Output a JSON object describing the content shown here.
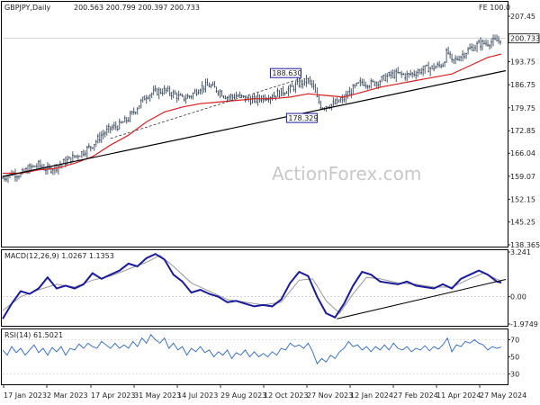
{
  "header": {
    "symbol": "GBPJPY,Daily",
    "ohlc": "200.563 200.799 200.397 200.733",
    "fe_label": "FE 100.0"
  },
  "watermark": "ActionForex.com",
  "colors": {
    "candle": "#3a4a5c",
    "ma": "#d62020",
    "trend": "#000000",
    "macd_line": "#1a1a9a",
    "macd_signal": "#999999",
    "rsi_line": "#2b66c4",
    "callout_box": "#1a1a9a",
    "grid": "#d0d0d0"
  },
  "chart_data": [
    {
      "type": "candlestick",
      "pane": "price",
      "y_ticks": [
        207.45,
        200.733,
        193.75,
        186.75,
        179.75,
        172.85,
        166.04,
        159.07,
        152.15,
        145.25,
        138.365
      ],
      "ylim": [
        138.365,
        207.45
      ],
      "last_price": 200.733,
      "x_tick_labels": [
        "17 Jan 2023",
        "2 Mar 2023",
        "17 Apr 2023",
        "31 May 2023",
        "14 Jul 2023",
        "29 Aug 2023",
        "12 Oct 2023",
        "27 Nov 2023",
        "12 Jan 2024",
        "27 Feb 2024",
        "11 Apr 2024",
        "27 May 2024"
      ],
      "close_points": [
        [
          0,
          158.5
        ],
        [
          10,
          160.0
        ],
        [
          20,
          159.5
        ],
        [
          30,
          161.5
        ],
        [
          40,
          162.5
        ],
        [
          50,
          161.0
        ],
        [
          60,
          162.0
        ],
        [
          70,
          163.5
        ],
        [
          80,
          165.0
        ],
        [
          90,
          166.5
        ],
        [
          100,
          168.5
        ],
        [
          110,
          171.5
        ],
        [
          120,
          173.5
        ],
        [
          130,
          174.5
        ],
        [
          140,
          176.5
        ],
        [
          150,
          180.0
        ],
        [
          160,
          183.5
        ],
        [
          170,
          184.5
        ],
        [
          180,
          185.0
        ],
        [
          190,
          184.0
        ],
        [
          200,
          182.5
        ],
        [
          210,
          183.5
        ],
        [
          220,
          186.0
        ],
        [
          230,
          186.5
        ],
        [
          240,
          185.0
        ],
        [
          250,
          183.0
        ],
        [
          260,
          183.5
        ],
        [
          270,
          182.5
        ],
        [
          280,
          182.0
        ],
        [
          290,
          183.0
        ],
        [
          300,
          183.5
        ],
        [
          310,
          184.5
        ],
        [
          320,
          185.5
        ],
        [
          330,
          187.0
        ],
        [
          340,
          188.0
        ],
        [
          345,
          186.5
        ],
        [
          350,
          182.5
        ],
        [
          355,
          180.0
        ],
        [
          360,
          180.5
        ],
        [
          370,
          181.0
        ],
        [
          380,
          182.5
        ],
        [
          390,
          185.5
        ],
        [
          400,
          187.5
        ],
        [
          410,
          187.0
        ],
        [
          420,
          188.0
        ],
        [
          430,
          189.5
        ],
        [
          440,
          190.0
        ],
        [
          450,
          189.5
        ],
        [
          460,
          190.5
        ],
        [
          470,
          191.5
        ],
        [
          480,
          192.0
        ],
        [
          490,
          193.0
        ],
        [
          495,
          197.0
        ],
        [
          500,
          193.5
        ],
        [
          510,
          195.5
        ],
        [
          520,
          197.5
        ],
        [
          530,
          199.0
        ],
        [
          540,
          199.5
        ],
        [
          550,
          200.0
        ],
        [
          555,
          200.7
        ]
      ],
      "ma_points": [
        [
          0,
          160.0
        ],
        [
          20,
          160.0
        ],
        [
          40,
          161.0
        ],
        [
          60,
          161.5
        ],
        [
          80,
          163.0
        ],
        [
          100,
          165.0
        ],
        [
          120,
          168.5
        ],
        [
          140,
          171.5
        ],
        [
          160,
          175.5
        ],
        [
          180,
          178.5
        ],
        [
          200,
          180.0
        ],
        [
          220,
          181.0
        ],
        [
          240,
          181.5
        ],
        [
          260,
          182.0
        ],
        [
          280,
          182.5
        ],
        [
          300,
          182.5
        ],
        [
          320,
          183.0
        ],
        [
          340,
          184.0
        ],
        [
          360,
          183.5
        ],
        [
          380,
          183.0
        ],
        [
          400,
          184.5
        ],
        [
          420,
          186.0
        ],
        [
          440,
          187.0
        ],
        [
          460,
          188.0
        ],
        [
          480,
          189.0
        ],
        [
          500,
          190.0
        ],
        [
          520,
          192.5
        ],
        [
          540,
          195.0
        ],
        [
          555,
          196.0
        ]
      ],
      "trendline": [
        [
          0,
          159.0
        ],
        [
          560,
          191.0
        ]
      ],
      "dashed_line": [
        [
          120,
          170.5
        ],
        [
          332,
          188.6
        ]
      ],
      "annotations": [
        {
          "text": "188.630",
          "x": 332,
          "y": 188.63
        },
        {
          "text": "178.329",
          "x": 350,
          "y": 178.33
        }
      ]
    },
    {
      "type": "line",
      "pane": "macd",
      "label": "MACD(12,26,9) 1.0267 1.1353",
      "y_ticks": [
        3.241,
        0.0,
        -1.9749
      ],
      "ylim": [
        -1.9749,
        3.241
      ],
      "macd_points": [
        [
          0,
          -1.6
        ],
        [
          10,
          -0.5
        ],
        [
          20,
          0.4
        ],
        [
          30,
          0.2
        ],
        [
          40,
          0.6
        ],
        [
          50,
          1.4
        ],
        [
          60,
          0.6
        ],
        [
          70,
          0.8
        ],
        [
          80,
          0.6
        ],
        [
          90,
          0.9
        ],
        [
          100,
          1.7
        ],
        [
          110,
          1.3
        ],
        [
          120,
          1.6
        ],
        [
          130,
          1.9
        ],
        [
          140,
          2.4
        ],
        [
          150,
          2.2
        ],
        [
          160,
          2.8
        ],
        [
          170,
          3.1
        ],
        [
          180,
          2.7
        ],
        [
          190,
          1.6
        ],
        [
          200,
          1.1
        ],
        [
          210,
          0.3
        ],
        [
          220,
          0.5
        ],
        [
          230,
          0.2
        ],
        [
          240,
          0.0
        ],
        [
          250,
          -0.4
        ],
        [
          260,
          -0.3
        ],
        [
          270,
          -0.5
        ],
        [
          280,
          -0.7
        ],
        [
          290,
          -0.6
        ],
        [
          300,
          -0.7
        ],
        [
          310,
          -0.2
        ],
        [
          320,
          1.0
        ],
        [
          330,
          1.8
        ],
        [
          340,
          1.5
        ],
        [
          350,
          0.0
        ],
        [
          360,
          -1.2
        ],
        [
          370,
          -1.5
        ],
        [
          380,
          -0.5
        ],
        [
          390,
          0.8
        ],
        [
          400,
          1.8
        ],
        [
          410,
          1.6
        ],
        [
          420,
          1.1
        ],
        [
          430,
          1.0
        ],
        [
          440,
          0.9
        ],
        [
          450,
          1.1
        ],
        [
          460,
          0.8
        ],
        [
          470,
          0.7
        ],
        [
          480,
          0.6
        ],
        [
          490,
          0.9
        ],
        [
          500,
          0.6
        ],
        [
          510,
          1.3
        ],
        [
          520,
          1.6
        ],
        [
          530,
          1.9
        ],
        [
          540,
          1.6
        ],
        [
          550,
          1.1
        ],
        [
          555,
          1.0267
        ]
      ],
      "signal_points": [
        [
          0,
          -1.0
        ],
        [
          20,
          0.0
        ],
        [
          40,
          0.5
        ],
        [
          60,
          0.9
        ],
        [
          80,
          0.7
        ],
        [
          100,
          1.2
        ],
        [
          120,
          1.5
        ],
        [
          140,
          2.0
        ],
        [
          160,
          2.5
        ],
        [
          175,
          3.0
        ],
        [
          190,
          2.2
        ],
        [
          210,
          1.0
        ],
        [
          230,
          0.4
        ],
        [
          250,
          -0.2
        ],
        [
          270,
          -0.4
        ],
        [
          290,
          -0.6
        ],
        [
          310,
          -0.4
        ],
        [
          330,
          1.2
        ],
        [
          345,
          1.3
        ],
        [
          360,
          -0.3
        ],
        [
          375,
          -1.2
        ],
        [
          390,
          0.2
        ],
        [
          405,
          1.4
        ],
        [
          420,
          1.3
        ],
        [
          440,
          1.0
        ],
        [
          460,
          0.9
        ],
        [
          480,
          0.7
        ],
        [
          500,
          0.7
        ],
        [
          520,
          1.3
        ],
        [
          535,
          1.7
        ],
        [
          555,
          1.1353
        ]
      ],
      "trendline": [
        [
          372,
          -1.6
        ],
        [
          560,
          1.25
        ]
      ]
    },
    {
      "type": "line",
      "pane": "rsi",
      "label": "RSI(14) 61.5021",
      "y_ticks": [
        70,
        50,
        30
      ],
      "ylim": [
        20,
        80
      ],
      "rsi_points": [
        [
          0,
          58
        ],
        [
          5,
          52
        ],
        [
          10,
          62
        ],
        [
          15,
          55
        ],
        [
          20,
          60
        ],
        [
          25,
          52
        ],
        [
          30,
          58
        ],
        [
          35,
          64
        ],
        [
          40,
          55
        ],
        [
          45,
          60
        ],
        [
          50,
          52
        ],
        [
          55,
          61
        ],
        [
          60,
          56
        ],
        [
          65,
          62
        ],
        [
          70,
          52
        ],
        [
          75,
          60
        ],
        [
          80,
          58
        ],
        [
          85,
          65
        ],
        [
          90,
          60
        ],
        [
          95,
          66
        ],
        [
          100,
          62
        ],
        [
          105,
          60
        ],
        [
          110,
          68
        ],
        [
          115,
          64
        ],
        [
          120,
          60
        ],
        [
          125,
          66
        ],
        [
          130,
          60
        ],
        [
          135,
          64
        ],
        [
          140,
          60
        ],
        [
          145,
          68
        ],
        [
          150,
          62
        ],
        [
          155,
          72
        ],
        [
          160,
          66
        ],
        [
          165,
          76
        ],
        [
          170,
          70
        ],
        [
          175,
          66
        ],
        [
          180,
          72
        ],
        [
          185,
          60
        ],
        [
          190,
          66
        ],
        [
          195,
          58
        ],
        [
          200,
          62
        ],
        [
          205,
          52
        ],
        [
          210,
          60
        ],
        [
          215,
          56
        ],
        [
          220,
          62
        ],
        [
          225,
          55
        ],
        [
          230,
          58
        ],
        [
          235,
          50
        ],
        [
          240,
          56
        ],
        [
          245,
          52
        ],
        [
          250,
          58
        ],
        [
          255,
          48
        ],
        [
          260,
          55
        ],
        [
          265,
          52
        ],
        [
          270,
          58
        ],
        [
          275,
          50
        ],
        [
          280,
          56
        ],
        [
          285,
          50
        ],
        [
          290,
          54
        ],
        [
          295,
          50
        ],
        [
          300,
          56
        ],
        [
          305,
          52
        ],
        [
          310,
          60
        ],
        [
          315,
          58
        ],
        [
          320,
          66
        ],
        [
          325,
          62
        ],
        [
          330,
          64
        ],
        [
          335,
          60
        ],
        [
          340,
          66
        ],
        [
          345,
          56
        ],
        [
          350,
          42
        ],
        [
          355,
          48
        ],
        [
          360,
          44
        ],
        [
          365,
          52
        ],
        [
          370,
          48
        ],
        [
          375,
          56
        ],
        [
          380,
          60
        ],
        [
          385,
          68
        ],
        [
          390,
          62
        ],
        [
          395,
          64
        ],
        [
          400,
          58
        ],
        [
          405,
          62
        ],
        [
          410,
          56
        ],
        [
          415,
          62
        ],
        [
          420,
          58
        ],
        [
          425,
          64
        ],
        [
          430,
          58
        ],
        [
          435,
          66
        ],
        [
          440,
          60
        ],
        [
          445,
          58
        ],
        [
          450,
          62
        ],
        [
          455,
          56
        ],
        [
          460,
          60
        ],
        [
          465,
          58
        ],
        [
          470,
          63
        ],
        [
          475,
          57
        ],
        [
          480,
          62
        ],
        [
          485,
          59
        ],
        [
          490,
          64
        ],
        [
          495,
          72
        ],
        [
          500,
          56
        ],
        [
          505,
          64
        ],
        [
          510,
          62
        ],
        [
          515,
          68
        ],
        [
          520,
          66
        ],
        [
          525,
          70
        ],
        [
          530,
          66
        ],
        [
          535,
          64
        ],
        [
          540,
          58
        ],
        [
          545,
          62
        ],
        [
          550,
          60
        ],
        [
          555,
          61.5
        ]
      ]
    }
  ]
}
